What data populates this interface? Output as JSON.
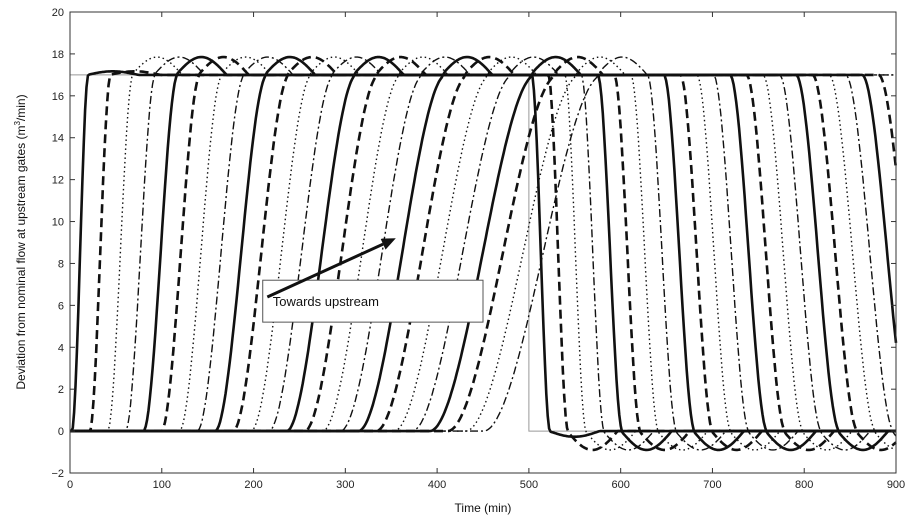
{
  "chart_data": {
    "type": "line",
    "xlabel": "Time (min)",
    "ylabel": "Deviation from nominal flow at upstream gates (m",
    "ylabel_sup": "3",
    "ylabel_tail": "/min)",
    "xlim": [
      0,
      900
    ],
    "ylim": [
      -2,
      20
    ],
    "xticks": [
      0,
      100,
      200,
      300,
      400,
      500,
      600,
      700,
      800,
      900
    ],
    "yticks": [
      -2,
      0,
      2,
      4,
      6,
      8,
      10,
      12,
      14,
      16,
      18,
      20
    ],
    "grid": false,
    "reference_series": {
      "description": "step input",
      "x": [
        0,
        0,
        500,
        500,
        900
      ],
      "y": [
        0,
        17,
        17,
        0,
        0
      ]
    },
    "response_family": {
      "count": 24,
      "first_rise_start": 2,
      "rise_spacing_min": 19.5,
      "rise_duration_min": [
        18,
        130
      ],
      "first_fall_start": 503,
      "fall_spacing_min": 18,
      "fall_duration_min": [
        20,
        60
      ],
      "steady_high": 17,
      "steady_low": 0,
      "overshoot_peak": 17.85,
      "undershoot_trough": -0.9,
      "line_styles": [
        "solid",
        "dashed",
        "dotted",
        "dashdot"
      ]
    },
    "annotation": {
      "text": "Towards upstream",
      "arrow_from": [
        215,
        6.4
      ],
      "arrow_to": [
        355,
        9.2
      ],
      "box_x": [
        210,
        450
      ],
      "box_y": [
        5.2,
        7.2
      ]
    }
  }
}
